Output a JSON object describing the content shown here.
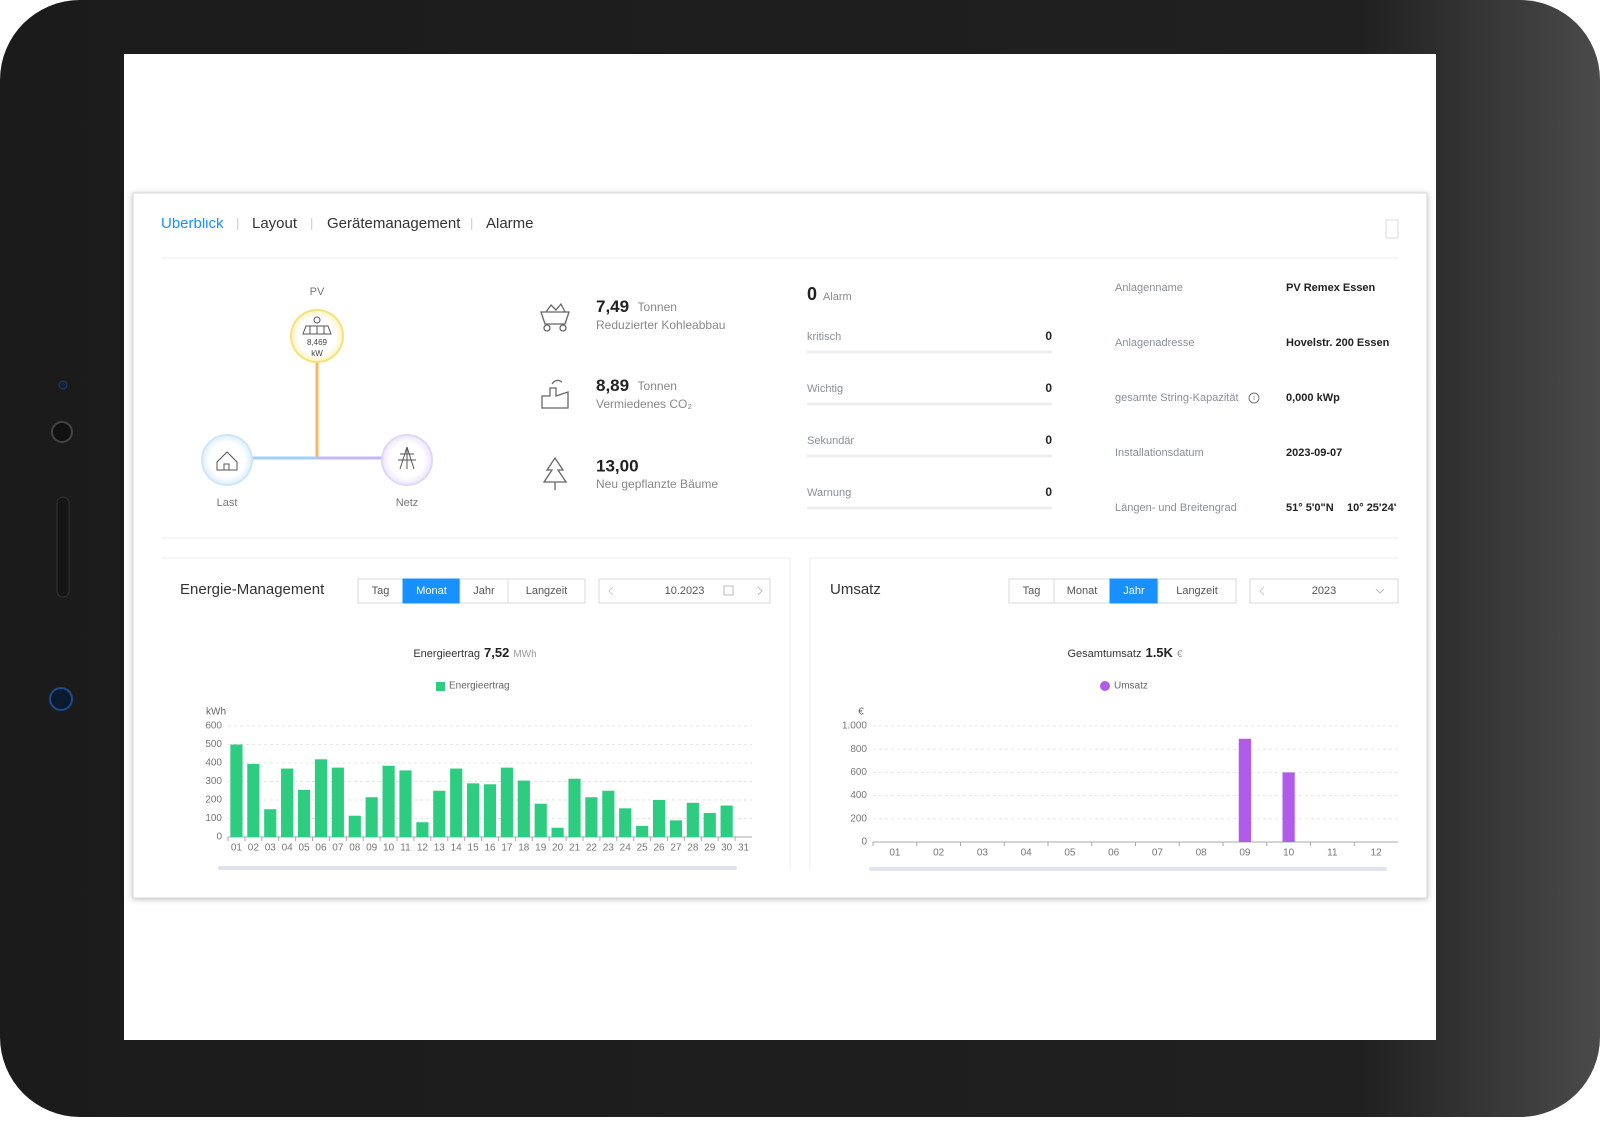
{
  "tabs": {
    "items": [
      "Überblick",
      "Layout",
      "Gerätemanagement",
      "Alarme"
    ],
    "active": 0
  },
  "flow": {
    "pv": {
      "label": "PV",
      "value": "8,469",
      "unit": "kW"
    },
    "load": {
      "label": "Last"
    },
    "grid": {
      "label": "Netz"
    }
  },
  "environment": [
    {
      "value": "7,49",
      "unit": "Tonnen",
      "label": "Reduzierter Kohleabbau"
    },
    {
      "value": "8,89",
      "unit": "Tonnen",
      "label": "Vermiedenes CO₂"
    },
    {
      "value": "13,00",
      "label": "Neu gepflanzte Bäume"
    }
  ],
  "alarms": {
    "total": 0,
    "label": "Alarm",
    "rows": [
      {
        "label": "kritisch",
        "value": 0
      },
      {
        "label": "Wichtig",
        "value": 0
      },
      {
        "label": "Sekundär",
        "value": 0
      },
      {
        "label": "Warnung",
        "value": 0
      }
    ]
  },
  "plant_info": [
    {
      "label": "Anlagenname",
      "value": "PV Remex Essen"
    },
    {
      "label": "Anlagenadresse",
      "value": "Hovelstr. 200 Essen"
    },
    {
      "label": "gesamte String-Kapazität",
      "value": "0,000 kWp"
    },
    {
      "label": "Installationsdatum",
      "value": "2023-09-07"
    },
    {
      "label": "Längen- und Breitengrad",
      "value": [
        "51° 5'0\"N",
        "10° 25'24'"
      ]
    }
  ],
  "panels": [
    {
      "title": "Energie-Management",
      "ranges": [
        "Tag",
        "Monat",
        "Jahr",
        "Langzeit"
      ],
      "active": 1,
      "date": "10.2023"
    },
    {
      "title": "Umsatz",
      "ranges": [
        "Tag",
        "Monat",
        "Jahr",
        "Langzeit"
      ],
      "active": 2,
      "date": "2023"
    }
  ],
  "chart_data": [
    {
      "type": "bar",
      "summary_label": "Energieertrag",
      "summary_value": "7,52",
      "summary_unit": "MWh",
      "y_label": "kWh",
      "categories": [
        "01",
        "02",
        "03",
        "04",
        "05",
        "06",
        "07",
        "08",
        "09",
        "10",
        "11",
        "12",
        "13",
        "14",
        "15",
        "16",
        "17",
        "18",
        "19",
        "20",
        "21",
        "22",
        "23",
        "24",
        "25",
        "26",
        "27",
        "28",
        "29",
        "30",
        "31"
      ],
      "series": [
        {
          "name": "Energieertrag",
          "color": "#2ecc80",
          "values": [
            500,
            395,
            150,
            370,
            255,
            420,
            375,
            115,
            215,
            385,
            360,
            80,
            250,
            370,
            290,
            285,
            375,
            305,
            180,
            50,
            315,
            215,
            250,
            155,
            60,
            200,
            90,
            185,
            130,
            170,
            null
          ]
        }
      ],
      "ylim": [
        0,
        600
      ],
      "yticks": [
        0,
        100,
        200,
        300,
        400,
        500,
        600
      ],
      "grid": true,
      "legend_marker": "square"
    },
    {
      "type": "bar",
      "summary_label": "Gesamtumsatz",
      "summary_value": "1.5K",
      "summary_unit": "€",
      "y_label": "€",
      "categories": [
        "01",
        "02",
        "03",
        "04",
        "05",
        "06",
        "07",
        "08",
        "09",
        "10",
        "11",
        "12"
      ],
      "series": [
        {
          "name": "Umsatz",
          "color": "#b05ce8",
          "values": [
            null,
            null,
            null,
            null,
            null,
            null,
            null,
            null,
            890,
            600,
            null,
            null
          ]
        }
      ],
      "ylim": [
        0,
        1000
      ],
      "yticks": [
        0,
        200,
        400,
        600,
        800,
        {
          "value": 1000,
          "label": "1.000"
        }
      ],
      "grid": true,
      "legend_marker": "circle"
    }
  ]
}
